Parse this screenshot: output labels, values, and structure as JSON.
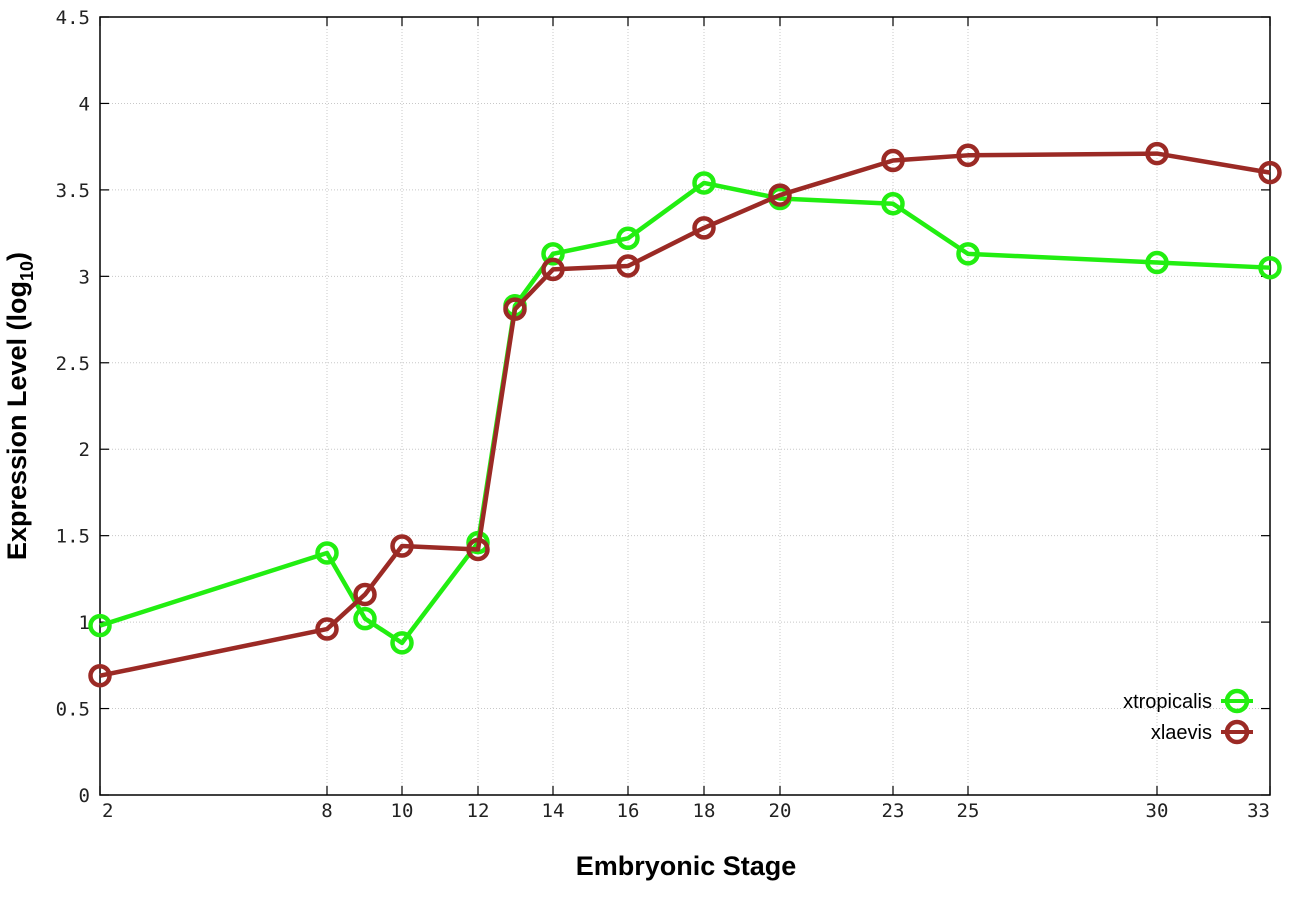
{
  "chart_data": {
    "type": "line",
    "xlabel": "Embryonic Stage",
    "ylabel_main": "Expression Level (log",
    "ylabel_sub": "10",
    "ylabel_close": ")",
    "x_scale": "categorical-unevenly-spaced",
    "categories": [
      "2",
      "8",
      "9",
      "10",
      "12",
      "13",
      "14",
      "16",
      "18",
      "20",
      "23",
      "25",
      "30",
      "33"
    ],
    "x_tick_labels": [
      "2",
      "8",
      "10",
      "12",
      "14",
      "16",
      "18",
      "20",
      "23",
      "25",
      "30",
      "33"
    ],
    "ylim": [
      0,
      4.5
    ],
    "y_ticks": [
      0,
      0.5,
      1,
      1.5,
      2,
      2.5,
      3,
      3.5,
      4,
      4.5
    ],
    "y_tick_labels": [
      "0",
      "0.5",
      "1",
      "1.5",
      "2",
      "2.5",
      "3",
      "3.5",
      "4",
      "4.5"
    ],
    "grid": true,
    "legend_position": "bottom-right",
    "series": [
      {
        "name": "xtropicalis",
        "color": "#22ee11",
        "values": [
          0.98,
          1.4,
          1.02,
          0.88,
          1.46,
          2.83,
          3.13,
          3.22,
          3.54,
          3.45,
          3.42,
          3.13,
          3.08,
          3.05
        ]
      },
      {
        "name": "xlaevis",
        "color": "#9b2a25",
        "values": [
          0.69,
          0.96,
          1.16,
          1.44,
          1.42,
          2.81,
          3.04,
          3.06,
          3.28,
          3.47,
          3.67,
          3.7,
          3.71,
          3.6
        ]
      }
    ]
  }
}
